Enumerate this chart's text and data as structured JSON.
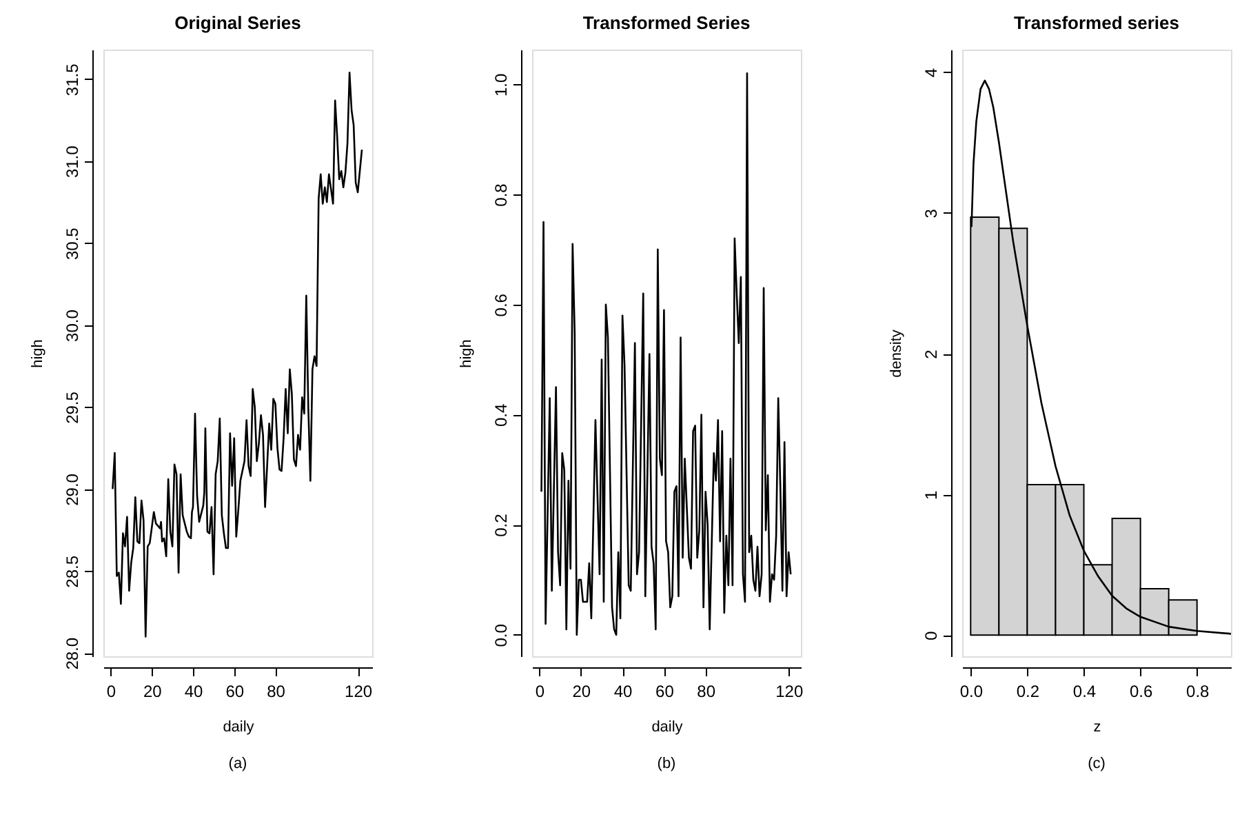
{
  "chart_data": [
    {
      "type": "line",
      "title": "Original Series",
      "xlabel": "daily",
      "ylabel": "high",
      "annotations": [
        "(a)"
      ],
      "color": "#000000",
      "grid": false,
      "xlim": [
        -3.5,
        127
      ],
      "xticks": [
        0,
        20,
        40,
        60,
        80,
        120
      ],
      "ylim": [
        27.98,
        31.68
      ],
      "yticks": [
        {
          "value": 28.0,
          "label": "28.0"
        },
        28.5,
        {
          "value": 29.0,
          "label": "29.0"
        },
        29.5,
        {
          "value": 30.0,
          "label": "30.0"
        },
        30.5,
        {
          "value": 31.0,
          "label": "31.0"
        },
        31.5
      ],
      "x": [
        1,
        2,
        3,
        4,
        5,
        6,
        7,
        8,
        9,
        10,
        11,
        12,
        13,
        14,
        15,
        16,
        17,
        18,
        19,
        21,
        22,
        24,
        24.5,
        25,
        26,
        27,
        28,
        29,
        30,
        31,
        32,
        33,
        34,
        35,
        37,
        38,
        39,
        39.5,
        40,
        41,
        42,
        43,
        45,
        45.5,
        46,
        47,
        48,
        49,
        50,
        51,
        52,
        53,
        54,
        55,
        56,
        57,
        58,
        59,
        60,
        61,
        62,
        63,
        65,
        66,
        67,
        68,
        69,
        70,
        71,
        72,
        73,
        74,
        75,
        76,
        77,
        78,
        79,
        80,
        81,
        82,
        83,
        84,
        85,
        86,
        87,
        88,
        89,
        90,
        91,
        92,
        93,
        94,
        95,
        96,
        97,
        98,
        99,
        100,
        101,
        102,
        103,
        104,
        105,
        106,
        107,
        108,
        109,
        110,
        111,
        112,
        113,
        114,
        115,
        116,
        117,
        118,
        119,
        120,
        121,
        122
      ],
      "values": [
        29.0,
        29.22,
        28.47,
        28.49,
        28.3,
        28.73,
        28.65,
        28.83,
        28.38,
        28.55,
        28.64,
        28.95,
        28.68,
        28.67,
        28.93,
        28.81,
        28.1,
        28.65,
        28.67,
        28.86,
        28.79,
        28.76,
        28.8,
        28.68,
        28.7,
        28.59,
        29.06,
        28.74,
        28.65,
        29.15,
        29.09,
        28.49,
        29.09,
        28.84,
        28.74,
        28.71,
        28.7,
        28.86,
        28.89,
        29.46,
        28.96,
        28.8,
        28.9,
        28.98,
        29.37,
        28.74,
        28.73,
        28.89,
        28.48,
        29.09,
        29.17,
        29.43,
        28.84,
        28.73,
        28.64,
        28.64,
        29.34,
        29.02,
        29.31,
        28.71,
        28.87,
        29.05,
        29.17,
        29.42,
        29.14,
        29.08,
        29.61,
        29.5,
        29.17,
        29.28,
        29.45,
        29.33,
        28.89,
        29.14,
        29.4,
        29.24,
        29.55,
        29.52,
        29.25,
        29.12,
        29.11,
        29.31,
        29.61,
        29.34,
        29.73,
        29.58,
        29.18,
        29.14,
        29.33,
        29.24,
        29.56,
        29.46,
        30.18,
        29.49,
        29.05,
        29.73,
        29.81,
        29.75,
        30.77,
        30.92,
        30.74,
        30.84,
        30.75,
        30.92,
        30.83,
        30.74,
        31.37,
        31.15,
        30.89,
        30.94,
        30.84,
        30.93,
        31.11,
        31.54,
        31.31,
        31.22,
        30.87,
        30.81,
        30.94,
        31.07
      ]
    },
    {
      "type": "line",
      "title": "Transformed Series",
      "xlabel": "daily",
      "ylabel": "high",
      "annotations": [
        "(b)"
      ],
      "color": "#000000",
      "grid": false,
      "xlim": [
        -3.5,
        125.9
      ],
      "xticks": [
        0,
        20,
        40,
        60,
        80,
        120
      ],
      "ylim": [
        -0.039,
        1.063
      ],
      "yticks": [
        {
          "value": 0,
          "label": "0.0"
        },
        0.2,
        0.4,
        0.6,
        0.8,
        {
          "value": 1,
          "label": "1.0"
        }
      ],
      "x": [
        1,
        2,
        3,
        5,
        6,
        8,
        9,
        10,
        11,
        12,
        13,
        14,
        15,
        16,
        17,
        18,
        19,
        20,
        21,
        23,
        24,
        25,
        27,
        29,
        30,
        31,
        32,
        33,
        35,
        36,
        37,
        38,
        39,
        40,
        41,
        43,
        44,
        46,
        47,
        48,
        50,
        51,
        53,
        54,
        55,
        56,
        57,
        58,
        59,
        60,
        61,
        62,
        63,
        64,
        65,
        66,
        67,
        68,
        69,
        70,
        72,
        73,
        74,
        75,
        76,
        77,
        78,
        79,
        80,
        81,
        82,
        84,
        85,
        86,
        87,
        88,
        89,
        90,
        91,
        92,
        93,
        94,
        95,
        96,
        97,
        98,
        99,
        100,
        101,
        102,
        103,
        104,
        105,
        106,
        107,
        108,
        109,
        110,
        111,
        112,
        113,
        114,
        115,
        116,
        117,
        118,
        119,
        120,
        121
      ],
      "values": [
        0.26,
        0.75,
        0.02,
        0.43,
        0.08,
        0.45,
        0.15,
        0.09,
        0.33,
        0.3,
        0.01,
        0.28,
        0.12,
        0.71,
        0.55,
        0.0,
        0.1,
        0.1,
        0.06,
        0.06,
        0.13,
        0.03,
        0.39,
        0.11,
        0.5,
        0.06,
        0.6,
        0.54,
        0.05,
        0.01,
        0.0,
        0.15,
        0.03,
        0.58,
        0.49,
        0.09,
        0.08,
        0.53,
        0.11,
        0.15,
        0.62,
        0.07,
        0.51,
        0.16,
        0.13,
        0.01,
        0.7,
        0.32,
        0.29,
        0.59,
        0.17,
        0.15,
        0.05,
        0.07,
        0.26,
        0.27,
        0.07,
        0.54,
        0.14,
        0.32,
        0.14,
        0.12,
        0.37,
        0.38,
        0.14,
        0.19,
        0.4,
        0.05,
        0.26,
        0.2,
        0.01,
        0.33,
        0.28,
        0.39,
        0.17,
        0.37,
        0.04,
        0.18,
        0.09,
        0.32,
        0.09,
        0.72,
        0.62,
        0.53,
        0.65,
        0.11,
        0.06,
        1.02,
        0.15,
        0.18,
        0.1,
        0.08,
        0.16,
        0.07,
        0.11,
        0.63,
        0.19,
        0.29,
        0.06,
        0.11,
        0.1,
        0.18,
        0.43,
        0.27,
        0.08,
        0.35,
        0.07,
        0.15,
        0.11
      ]
    },
    {
      "type": "histogram",
      "title": "Transformed series",
      "xlabel": "z",
      "ylabel": "density",
      "annotations": [
        "(c)"
      ],
      "color": "#d3d3d3",
      "grid": false,
      "xlim": [
        -0.03,
        0.92
      ],
      "xticks": [
        {
          "value": 0,
          "label": "0.0"
        },
        0.2,
        0.4,
        0.6,
        0.8
      ],
      "ylim": [
        -0.15,
        4.16
      ],
      "yticks": [
        0,
        1,
        2,
        3,
        4
      ],
      "bins": [
        0,
        0.1,
        0.2,
        0.3,
        0.4,
        0.5,
        0.6,
        0.7,
        0.8
      ],
      "values": [
        2.97,
        2.89,
        1.07,
        1.07,
        0.5,
        0.83,
        0.33,
        0.25
      ],
      "series": [
        {
          "type": "line",
          "color": "#000000",
          "x": [
            0.003,
            0.01,
            0.02,
            0.035,
            0.05,
            0.065,
            0.08,
            0.1,
            0.125,
            0.15,
            0.175,
            0.2,
            0.25,
            0.3,
            0.35,
            0.4,
            0.45,
            0.5,
            0.55,
            0.6,
            0.7,
            0.8,
            0.92
          ],
          "values": [
            2.9,
            3.35,
            3.65,
            3.88,
            3.94,
            3.88,
            3.75,
            3.5,
            3.15,
            2.8,
            2.5,
            2.2,
            1.65,
            1.2,
            0.85,
            0.6,
            0.42,
            0.28,
            0.19,
            0.13,
            0.06,
            0.03,
            0.01
          ]
        }
      ]
    }
  ]
}
